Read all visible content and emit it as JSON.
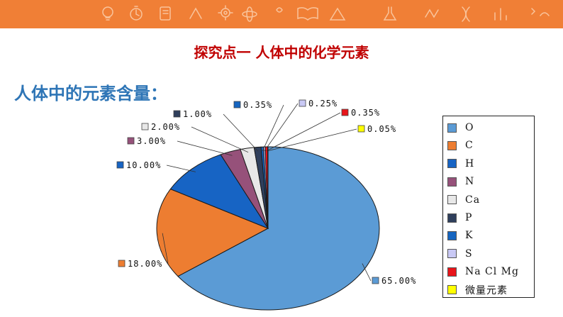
{
  "slide": {
    "title": "探究点一 人体中的化学元素",
    "heading": "人体中的元素含量："
  },
  "colors": {
    "banner": "#f07f36",
    "title": "#c00000",
    "heading": "#2e75b6"
  },
  "banner_icons": [
    "lightbulb-icon",
    "stopwatch-icon",
    "notebook-icon",
    "gear-icon",
    "atom-icon",
    "book-icon",
    "ruler-icon",
    "flask-icon",
    "dna-icon",
    "chart-icon"
  ],
  "chart_data": {
    "type": "pie",
    "title": "",
    "legend_position": "right",
    "slices": [
      {
        "legend": "O",
        "value": 65.0,
        "label": "65.00%",
        "color": "#5b9bd5"
      },
      {
        "legend": "C",
        "value": 18.0,
        "label": "18.00%",
        "color": "#ed7d31"
      },
      {
        "legend": "H",
        "value": 10.0,
        "label": "10.00%",
        "color": "#1764c4"
      },
      {
        "legend": "N",
        "value": 3.0,
        "label": "3.00%",
        "color": "#96517a"
      },
      {
        "legend": "Ca",
        "value": 2.0,
        "label": "2.00%",
        "color": "#e8e8e8"
      },
      {
        "legend": "P",
        "value": 1.0,
        "label": "1.00%",
        "color": "#2f3f5c"
      },
      {
        "legend": "K",
        "value": 0.35,
        "label": "0.35%",
        "color": "#1565c0"
      },
      {
        "legend": "S",
        "value": 0.25,
        "label": "0.25%",
        "color": "#c9c9f5"
      },
      {
        "legend": "Na Cl Mg",
        "value": 0.35,
        "label": "0.35%",
        "color": "#e8141a"
      },
      {
        "legend": "微量元素",
        "value": 0.05,
        "label": "0.05%",
        "color": "#ffff00"
      }
    ]
  }
}
